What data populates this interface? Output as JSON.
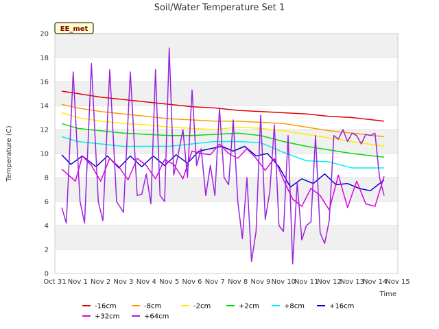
{
  "chart_data": {
    "type": "line",
    "title": "Soil/Water Temperature Set 1",
    "xlabel": "Time",
    "ylabel": "Temperature (C)",
    "site_label": "EE_met",
    "ylim": [
      0,
      20
    ],
    "yticks": [
      0,
      2,
      4,
      6,
      8,
      10,
      12,
      14,
      16,
      18,
      20
    ],
    "xlim": [
      0,
      15
    ],
    "xtick_labels": [
      "Oct 31",
      "Nov 1",
      "Nov 2",
      "Nov 3",
      "Nov 4",
      "Nov 5",
      "Nov 6",
      "Nov 7",
      "Nov 8",
      "Nov 9",
      "Nov 10",
      "Nov 11",
      "Nov 12",
      "Nov 13",
      "Nov 14",
      "Nov 15"
    ],
    "grid": "horizontal bands",
    "legend_position": "bottom",
    "series": [
      {
        "name": "-16cm",
        "color": "#dd0000",
        "x": [
          0.3,
          1,
          2,
          3,
          4,
          5,
          6,
          7,
          8,
          9,
          10,
          11,
          12,
          13,
          14.4
        ],
        "y": [
          15.2,
          15.0,
          14.7,
          14.5,
          14.3,
          14.1,
          13.9,
          13.8,
          13.6,
          13.5,
          13.4,
          13.3,
          13.1,
          13.0,
          12.7
        ]
      },
      {
        "name": "-8cm",
        "color": "#ff9900",
        "x": [
          0.3,
          1,
          2,
          3,
          4,
          5,
          6,
          7,
          8,
          9,
          10,
          11,
          12,
          13,
          14.4
        ],
        "y": [
          14.1,
          13.8,
          13.5,
          13.3,
          13.1,
          12.9,
          12.8,
          12.7,
          12.7,
          12.6,
          12.5,
          12.2,
          11.9,
          11.7,
          11.4
        ]
      },
      {
        "name": "-2cm",
        "color": "#ffee00",
        "x": [
          0.3,
          1,
          2,
          3,
          4,
          5,
          6,
          7,
          8,
          9,
          10,
          11,
          12,
          13,
          14.4
        ],
        "y": [
          13.4,
          13.0,
          12.7,
          12.5,
          12.4,
          12.2,
          12.1,
          12.0,
          12.2,
          12.1,
          11.9,
          11.6,
          11.3,
          11.0,
          10.6
        ]
      },
      {
        "name": "+2cm",
        "color": "#00dd00",
        "x": [
          0.3,
          1,
          2,
          3,
          4,
          5,
          6,
          7,
          8,
          9,
          10,
          11,
          12,
          13,
          14.4
        ],
        "y": [
          12.5,
          12.1,
          11.9,
          11.7,
          11.6,
          11.5,
          11.5,
          11.6,
          11.7,
          11.5,
          11.0,
          10.6,
          10.3,
          10.0,
          9.7
        ]
      },
      {
        "name": "+8cm",
        "color": "#00eeee",
        "x": [
          0.3,
          1,
          2,
          3,
          4,
          5,
          6,
          7,
          8,
          9,
          10,
          11,
          12,
          13,
          14.4
        ],
        "y": [
          11.4,
          11.0,
          10.8,
          10.6,
          10.6,
          10.6,
          10.8,
          11.0,
          11.0,
          10.9,
          10.1,
          9.4,
          9.3,
          8.8,
          8.8
        ]
      },
      {
        "name": "+16cm",
        "color": "#0000cc",
        "x": [
          0.3,
          0.7,
          1.2,
          1.8,
          2.3,
          2.8,
          3.3,
          3.8,
          4.3,
          4.8,
          5.3,
          5.8,
          6.3,
          6.8,
          7.3,
          7.8,
          8.3,
          8.8,
          9.3,
          9.8,
          10.3,
          10.8,
          11.3,
          11.8,
          12.3,
          12.8,
          13.3,
          13.8,
          14.4
        ],
        "y": [
          9.9,
          9.1,
          9.8,
          8.9,
          9.8,
          8.8,
          9.8,
          8.9,
          9.8,
          9.0,
          9.9,
          9.2,
          10.2,
          10.4,
          10.6,
          10.2,
          10.6,
          9.8,
          10.0,
          8.9,
          7.2,
          7.9,
          7.5,
          8.3,
          7.4,
          7.5,
          7.1,
          6.9,
          7.8
        ]
      },
      {
        "name": "+32cm",
        "color": "#dd00dd",
        "x": [
          0.3,
          0.6,
          0.9,
          1.2,
          1.6,
          2.0,
          2.4,
          2.8,
          3.2,
          3.6,
          4.0,
          4.4,
          4.8,
          5.2,
          5.6,
          6.0,
          6.4,
          6.8,
          7.2,
          7.6,
          8.0,
          8.4,
          8.8,
          9.2,
          9.6,
          10.0,
          10.4,
          10.8,
          11.2,
          11.6,
          12.0,
          12.4,
          12.8,
          13.2,
          13.6,
          14.0,
          14.4
        ],
        "y": [
          8.7,
          8.2,
          7.7,
          9.8,
          9.0,
          7.7,
          9.6,
          8.9,
          7.8,
          9.6,
          9.0,
          7.9,
          9.5,
          9.1,
          7.9,
          10.2,
          10.0,
          9.9,
          10.8,
          10.0,
          9.6,
          10.4,
          9.6,
          8.6,
          9.6,
          7.8,
          6.2,
          5.6,
          7.1,
          6.5,
          5.3,
          8.2,
          5.5,
          7.7,
          5.8,
          5.6,
          8.1
        ]
      },
      {
        "name": "+64cm",
        "color": "#9922dd",
        "x": [
          0.3,
          0.5,
          0.8,
          1.1,
          1.3,
          1.6,
          1.9,
          2.1,
          2.4,
          2.7,
          3.0,
          3.3,
          3.6,
          3.8,
          4.0,
          4.2,
          4.4,
          4.6,
          4.8,
          5.0,
          5.2,
          5.4,
          5.6,
          5.8,
          6.0,
          6.2,
          6.4,
          6.6,
          6.8,
          7.0,
          7.2,
          7.4,
          7.6,
          7.8,
          8.0,
          8.2,
          8.4,
          8.6,
          8.8,
          9.0,
          9.2,
          9.4,
          9.6,
          9.8,
          10.0,
          10.2,
          10.4,
          10.6,
          10.8,
          11.0,
          11.2,
          11.4,
          11.6,
          11.8,
          12.0,
          12.2,
          12.4,
          12.6,
          12.8,
          13.0,
          13.2,
          13.4,
          13.6,
          13.8,
          14.0,
          14.2,
          14.4
        ],
        "y": [
          5.5,
          4.2,
          16.8,
          6.0,
          4.2,
          17.5,
          6.0,
          4.4,
          17.0,
          6.0,
          5.1,
          16.8,
          6.5,
          6.6,
          8.3,
          5.8,
          17.0,
          6.5,
          6.0,
          18.8,
          8.2,
          10.0,
          12.0,
          8.0,
          15.3,
          9.0,
          10.4,
          6.5,
          9.0,
          6.5,
          13.8,
          8.0,
          7.4,
          12.8,
          6.0,
          2.9,
          8.0,
          1.0,
          3.5,
          13.2,
          4.5,
          6.8,
          12.4,
          4.0,
          3.5,
          11.5,
          0.8,
          7.6,
          2.8,
          4.0,
          4.3,
          11.5,
          3.4,
          2.5,
          4.4,
          11.5,
          11.2,
          12.0,
          11.0,
          11.7,
          11.5,
          10.8,
          11.6,
          11.5,
          11.7,
          8.0,
          6.5
        ]
      }
    ]
  }
}
